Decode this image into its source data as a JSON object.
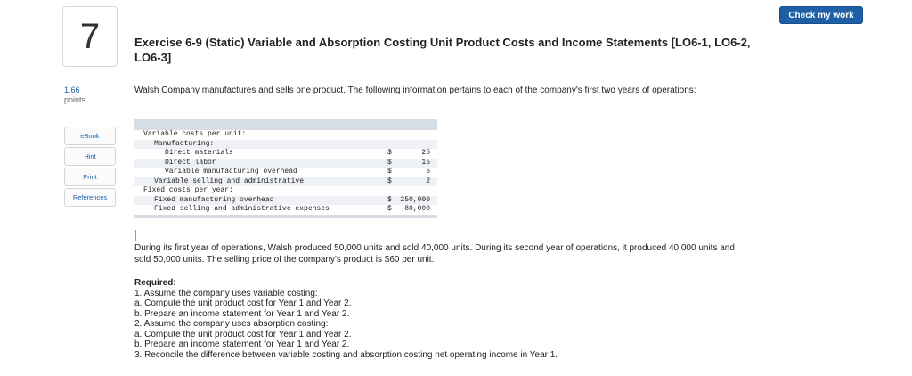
{
  "header": {
    "check_button": "Check my work",
    "question_number": "7",
    "points_value": "1.66",
    "points_label": "points"
  },
  "tools": [
    "eBook",
    "Hint",
    "Print",
    "References"
  ],
  "question": {
    "title": "Exercise 6-9 (Static) Variable and Absorption Costing Unit Product Costs and Income Statements [LO6-1, LO6-2, LO6-3]",
    "intro": "Walsh Company manufactures and sells one product. The following information pertains to each of the company's first two years of operations:"
  },
  "cost_table": [
    {
      "label": "Variable costs per unit:",
      "cur": "",
      "val": "",
      "indent": 0
    },
    {
      "label": "Manufacturing:",
      "cur": "",
      "val": "",
      "indent": 1
    },
    {
      "label": "Direct materials",
      "cur": "$",
      "val": "25",
      "indent": 2
    },
    {
      "label": "Direct labor",
      "cur": "$",
      "val": "15",
      "indent": 2
    },
    {
      "label": "Variable manufacturing overhead",
      "cur": "$",
      "val": "5",
      "indent": 2
    },
    {
      "label": "Variable selling and administrative",
      "cur": "$",
      "val": "2",
      "indent": 1
    },
    {
      "label": "Fixed costs per year:",
      "cur": "",
      "val": "",
      "indent": 0
    },
    {
      "label": "Fixed manufacturing overhead",
      "cur": "$",
      "val": "250,000",
      "indent": 1
    },
    {
      "label": "Fixed selling and administrative expenses",
      "cur": "$",
      "val": "80,000",
      "indent": 1
    }
  ],
  "paragraph": "During its first year of operations, Walsh produced 50,000 units and sold 40,000 units. During its second year of operations, it produced 40,000 units and sold 50,000 units. The selling price of the company's product is $60 per unit.",
  "required": {
    "heading": "Required:",
    "lines": [
      "1. Assume the company uses variable costing:",
      "a. Compute the unit product cost for Year 1 and Year 2.",
      "b. Prepare an income statement for Year 1 and Year 2.",
      "2. Assume the company uses absorption costing:",
      "a. Compute the unit product cost for Year 1 and Year 2.",
      "b. Prepare an income statement for Year 1 and Year 2.",
      "3. Reconcile the difference between variable costing and absorption costing net operating income in Year 1."
    ]
  }
}
